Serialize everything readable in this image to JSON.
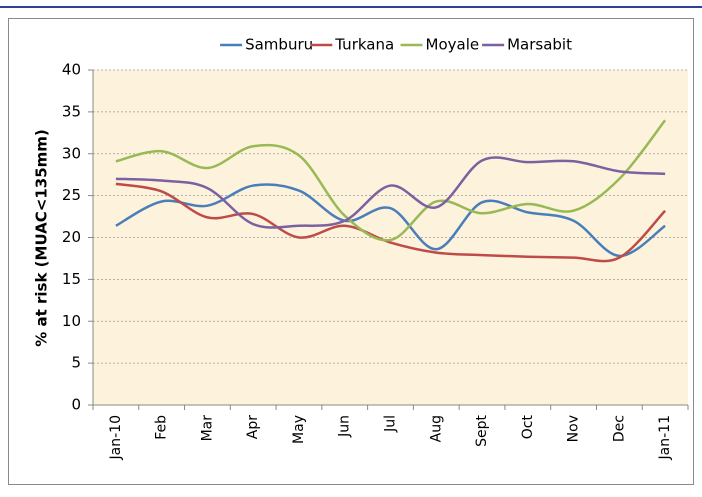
{
  "chart_data": {
    "type": "line",
    "y_label": "% at risk (MUAC<135mm)",
    "categories": [
      "Jan-10",
      "Feb",
      "Mar",
      "Apr",
      "May",
      "Jun",
      "Jul",
      "Aug",
      "Sept",
      "Oct",
      "Nov",
      "Dec",
      "Jan-11"
    ],
    "series": [
      {
        "name": "Samburu",
        "color": "#4a7ebb",
        "values": [
          21.4,
          24.3,
          23.8,
          26.2,
          25.6,
          22.0,
          23.5,
          18.6,
          24.2,
          23.0,
          22.0,
          17.8,
          21.4
        ]
      },
      {
        "name": "Turkana",
        "color": "#be4b48",
        "values": [
          26.4,
          25.5,
          22.4,
          22.8,
          20.0,
          21.4,
          19.4,
          18.2,
          17.9,
          17.7,
          17.6,
          17.6,
          23.2
        ]
      },
      {
        "name": "Moyale",
        "color": "#98b954",
        "values": [
          29.1,
          30.3,
          28.3,
          30.9,
          29.8,
          22.6,
          19.7,
          24.3,
          22.9,
          24.0,
          23.2,
          27.0,
          34.0
        ]
      },
      {
        "name": "Marsabit",
        "color": "#7d60a0",
        "values": [
          27.0,
          26.8,
          25.9,
          21.6,
          21.4,
          22.0,
          26.2,
          23.6,
          29.2,
          29.0,
          29.1,
          27.9,
          27.6
        ]
      }
    ],
    "ylim": [
      0,
      40
    ],
    "yticks": [
      0,
      5,
      10,
      15,
      20,
      25,
      30,
      35,
      40
    ],
    "grid": true,
    "legend": "top"
  }
}
